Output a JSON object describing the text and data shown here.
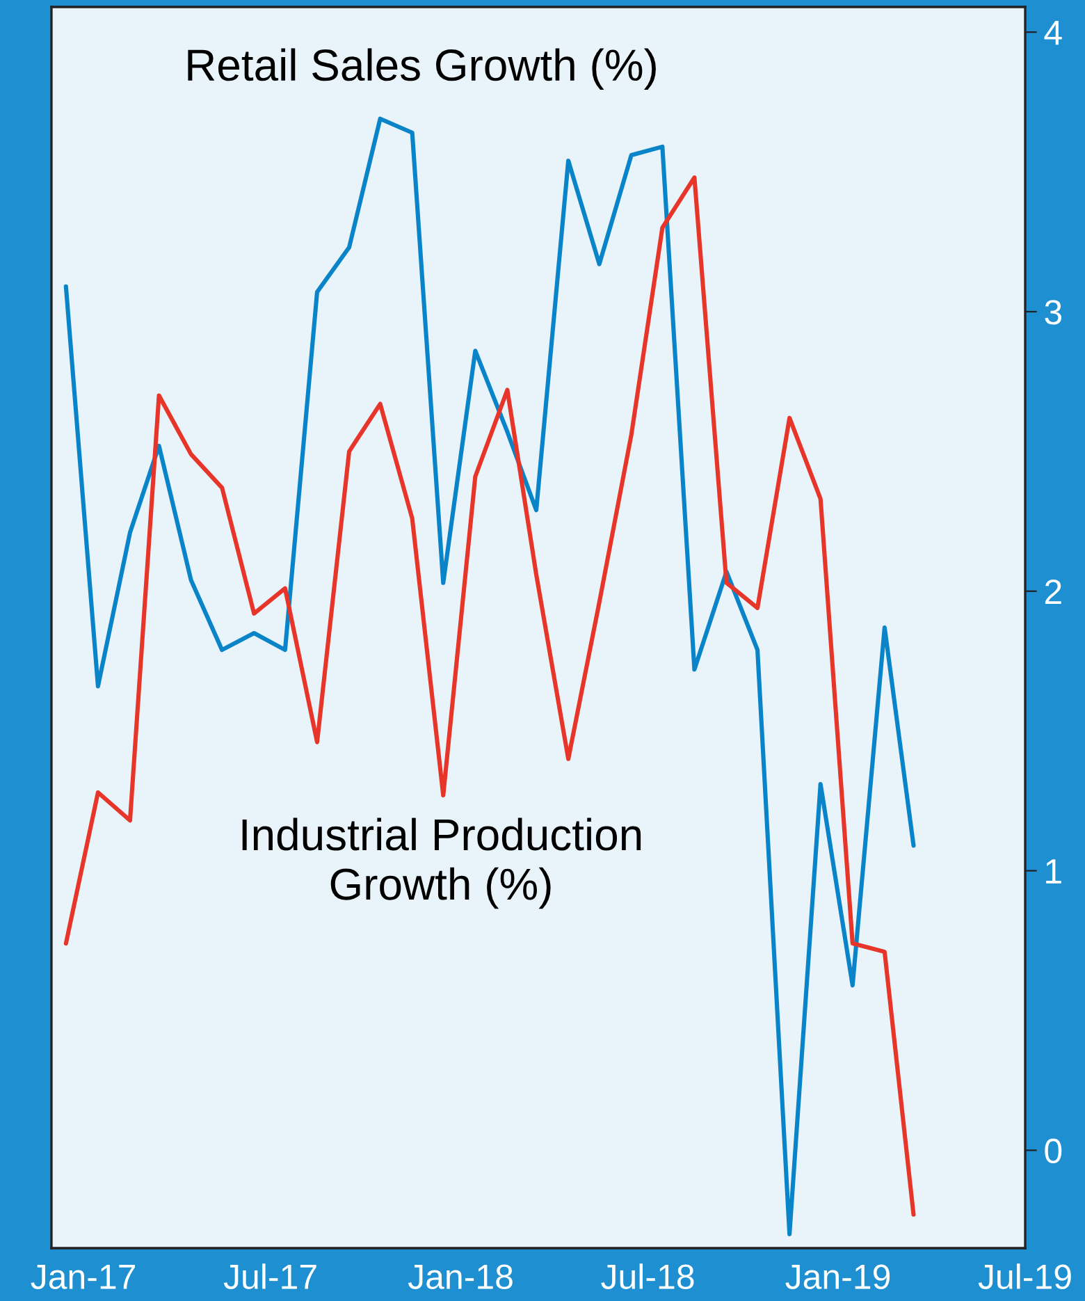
{
  "chart_data": {
    "type": "line",
    "x": [
      "2016-12-15",
      "2017-01-15",
      "2017-02-15",
      "2017-03-15",
      "2017-04-15",
      "2017-05-15",
      "2017-06-15",
      "2017-07-15",
      "2017-08-15",
      "2017-09-15",
      "2017-10-15",
      "2017-11-15",
      "2017-12-15",
      "2018-01-15",
      "2018-02-15",
      "2018-03-15",
      "2018-04-15",
      "2018-05-15",
      "2018-06-15",
      "2018-07-15",
      "2018-08-15",
      "2018-09-15",
      "2018-10-15",
      "2018-11-15",
      "2018-12-15",
      "2019-01-15",
      "2019-02-15",
      "2019-03-15"
    ],
    "series": [
      {
        "name": "Retail Sales Growth (%)",
        "color": "#0a84c8",
        "values": [
          3.09,
          1.66,
          2.21,
          2.52,
          2.04,
          1.79,
          1.85,
          1.79,
          3.07,
          3.23,
          3.69,
          3.64,
          2.03,
          2.86,
          2.57,
          2.29,
          3.54,
          3.17,
          3.56,
          3.59,
          1.72,
          2.07,
          1.79,
          -0.3,
          1.31,
          0.59,
          1.87,
          1.09
        ]
      },
      {
        "name": "Industrial Production\nGrowth (%)",
        "color": "#e8352a",
        "values": [
          0.74,
          1.28,
          1.18,
          2.7,
          2.49,
          2.37,
          1.92,
          2.01,
          1.46,
          2.5,
          2.67,
          2.26,
          1.27,
          2.41,
          2.72,
          2.06,
          1.4,
          1.96,
          2.56,
          3.3,
          3.48,
          2.03,
          1.94,
          2.62,
          2.33,
          0.74,
          0.71,
          -0.23
        ]
      }
    ],
    "xlim": [
      "2016-12-01",
      "2019-07-01"
    ],
    "xticks": [
      {
        "value": "2017-01-01",
        "label": "Jan-17"
      },
      {
        "value": "2017-07-01",
        "label": "Jul-17"
      },
      {
        "value": "2018-01-01",
        "label": "Jan-18"
      },
      {
        "value": "2018-07-01",
        "label": "Jul-18"
      },
      {
        "value": "2019-01-01",
        "label": "Jan-19"
      },
      {
        "value": "2019-07-01",
        "label": "Jul-19"
      }
    ],
    "ylim": [
      -0.35,
      4.09
    ],
    "yticks": [
      0,
      1,
      2,
      3,
      4
    ],
    "grid": false,
    "legend": false,
    "marker": "none",
    "line_style": "solid"
  }
}
